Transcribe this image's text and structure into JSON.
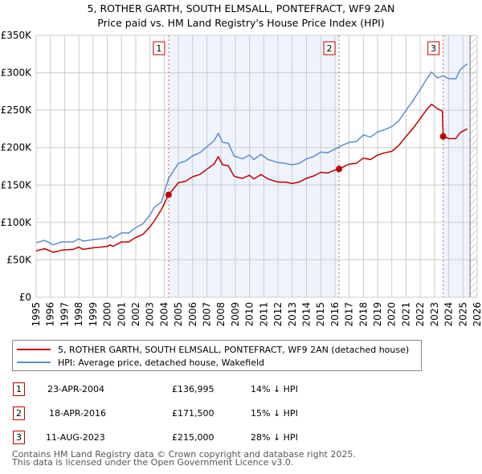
{
  "header": {
    "title": "5, ROTHER GARTH, SOUTH ELMSALL, PONTEFRACT, WF9 2AN",
    "subtitle": "Price paid vs. HM Land Registry's House Price Index (HPI)"
  },
  "colors": {
    "price_paid": "#c00000",
    "hpi": "#5b8fd0",
    "shade": "#eef3fc",
    "marker_line": "#e06070",
    "grid": "#cccccc"
  },
  "chart_data": {
    "type": "line",
    "title": "5, ROTHER GARTH, SOUTH ELMSALL, PONTEFRACT, WF9 2AN",
    "subtitle": "Price paid vs. HM Land Registry's House Price Index (HPI)",
    "xlabel": "",
    "ylabel": "",
    "xlim": [
      1995,
      2026
    ],
    "ylim": [
      0,
      350000
    ],
    "grid": true,
    "legend_position": "below",
    "x_ticks": [
      "1995",
      "1996",
      "1997",
      "1998",
      "1999",
      "2000",
      "2001",
      "2002",
      "2003",
      "2004",
      "2005",
      "2006",
      "2007",
      "2008",
      "2009",
      "2010",
      "2011",
      "2012",
      "2013",
      "2014",
      "2015",
      "2016",
      "2017",
      "2018",
      "2019",
      "2020",
      "2021",
      "2022",
      "2023",
      "2024",
      "2025",
      "2026"
    ],
    "y_ticks": [
      {
        "value": 0,
        "label": "£0"
      },
      {
        "value": 50000,
        "label": "£50K"
      },
      {
        "value": 100000,
        "label": "£100K"
      },
      {
        "value": 150000,
        "label": "£150K"
      },
      {
        "value": 200000,
        "label": "£200K"
      },
      {
        "value": 250000,
        "label": "£250K"
      },
      {
        "value": 300000,
        "label": "£300K"
      },
      {
        "value": 350000,
        "label": "£350K"
      }
    ],
    "shaded_ranges": [
      [
        2004.31,
        2016.29
      ],
      [
        2023.61,
        2025.5
      ]
    ],
    "forecast_hatch_start": 2025.5,
    "series": [
      {
        "name": "5, ROTHER GARTH, SOUTH ELMSALL, PONTEFRACT, WF9 2AN (detached house)",
        "color": "#c00000",
        "x": [
          1995.0,
          1995.6,
          1996.2,
          1996.8,
          1997.6,
          1998.0,
          1998.3,
          1999.0,
          2000.0,
          2000.2,
          2000.4,
          2001.0,
          2001.5,
          2002.0,
          2002.5,
          2003.0,
          2003.3,
          2003.8,
          2004.31,
          2005.0,
          2005.5,
          2006.0,
          2006.5,
          2007.0,
          2007.5,
          2007.8,
          2008.1,
          2008.5,
          2008.9,
          2009.2,
          2009.5,
          2010.0,
          2010.3,
          2010.8,
          2011.3,
          2012.0,
          2012.5,
          2013.0,
          2013.5,
          2014.0,
          2014.5,
          2015.0,
          2015.5,
          2016.0,
          2016.29,
          2017.0,
          2017.5,
          2018.0,
          2018.5,
          2019.0,
          2019.5,
          2020.0,
          2020.5,
          2021.0,
          2021.5,
          2022.0,
          2022.5,
          2022.8,
          2023.2,
          2023.55,
          2023.61,
          2024.0,
          2024.5,
          2024.8,
          2025.3
        ],
        "y": [
          62000,
          65000,
          60000,
          63000,
          64000,
          67000,
          64000,
          66000,
          68000,
          70000,
          68000,
          74000,
          74000,
          80000,
          84000,
          94000,
          102000,
          117000,
          136995,
          153000,
          155000,
          161000,
          164000,
          171000,
          178000,
          188000,
          177000,
          176000,
          162000,
          160000,
          159000,
          163000,
          158000,
          164000,
          158000,
          154000,
          154000,
          152000,
          154000,
          159000,
          162000,
          167000,
          166000,
          170000,
          171500,
          178000,
          179000,
          186000,
          184000,
          190000,
          193000,
          195000,
          203000,
          215000,
          226000,
          239000,
          252000,
          258000,
          252000,
          249000,
          215000,
          212000,
          212000,
          220000,
          225000
        ]
      },
      {
        "name": "HPI: Average price, detached house, Wakefield",
        "color": "#5b8fd0",
        "x": [
          1995.0,
          1995.6,
          1996.2,
          1996.8,
          1997.6,
          1998.0,
          1998.3,
          1999.0,
          2000.0,
          2000.2,
          2000.4,
          2001.0,
          2001.5,
          2002.0,
          2002.5,
          2003.0,
          2003.3,
          2003.8,
          2004.31,
          2005.0,
          2005.5,
          2006.0,
          2006.5,
          2007.0,
          2007.5,
          2007.8,
          2008.1,
          2008.5,
          2008.9,
          2009.2,
          2009.5,
          2010.0,
          2010.3,
          2010.8,
          2011.3,
          2012.0,
          2012.5,
          2013.0,
          2013.5,
          2014.0,
          2014.5,
          2015.0,
          2015.5,
          2016.0,
          2016.5,
          2017.0,
          2017.5,
          2018.0,
          2018.5,
          2019.0,
          2019.5,
          2020.0,
          2020.5,
          2021.0,
          2021.5,
          2022.0,
          2022.5,
          2022.8,
          2023.2,
          2023.6,
          2024.0,
          2024.5,
          2024.8,
          2025.3
        ],
        "y": [
          73000,
          76000,
          70000,
          74000,
          74000,
          78000,
          75000,
          77000,
          79000,
          82000,
          79000,
          86000,
          86000,
          93000,
          98000,
          110000,
          120000,
          127000,
          159000,
          179000,
          182000,
          189000,
          193000,
          201000,
          209000,
          219000,
          207000,
          206000,
          189000,
          187000,
          185000,
          190000,
          184000,
          191000,
          184000,
          180000,
          179000,
          177000,
          179000,
          185000,
          188000,
          194000,
          193000,
          198000,
          203000,
          207000,
          208000,
          217000,
          214000,
          221000,
          224000,
          228000,
          236000,
          250000,
          263000,
          278000,
          293000,
          301000,
          293000,
          296000,
          292000,
          292000,
          304000,
          312000
        ]
      }
    ],
    "annotations": [
      {
        "label": "1",
        "x": 2004.31,
        "y": 136995
      },
      {
        "label": "2",
        "x": 2016.29,
        "y": 171500
      },
      {
        "label": "3",
        "x": 2023.61,
        "y": 215000
      }
    ]
  },
  "legend": {
    "items": [
      {
        "label": "5, ROTHER GARTH, SOUTH ELMSALL, PONTEFRACT, WF9 2AN (detached house)",
        "color": "#c00000"
      },
      {
        "label": "HPI: Average price, detached house, Wakefield",
        "color": "#5b8fd0"
      }
    ]
  },
  "sales": [
    {
      "num": "1",
      "date": "23-APR-2004",
      "price": "£136,995",
      "hpi": "14% ↓ HPI"
    },
    {
      "num": "2",
      "date": "18-APR-2016",
      "price": "£171,500",
      "hpi": "15% ↓ HPI"
    },
    {
      "num": "3",
      "date": "11-AUG-2023",
      "price": "£215,000",
      "hpi": "28% ↓ HPI"
    }
  ],
  "footer": {
    "line1": "Contains HM Land Registry data © Crown copyright and database right 2025.",
    "line2": "This data is licensed under the Open Government Licence v3.0."
  }
}
